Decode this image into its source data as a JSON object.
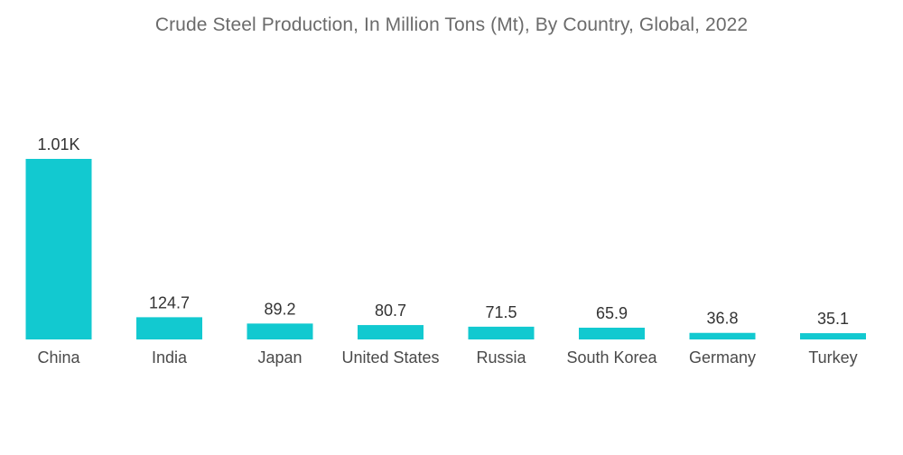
{
  "chart_data": {
    "type": "bar",
    "title": "Crude Steel Production, In Million Tons (Mt), By Country, Global, 2022",
    "categories": [
      "China",
      "India",
      "Japan",
      "United States",
      "Russia",
      "South Korea",
      "Germany",
      "Turkey"
    ],
    "values": [
      1013,
      124.7,
      89.2,
      80.7,
      71.5,
      65.9,
      36.8,
      35.1
    ],
    "value_labels": [
      "1.01K",
      "124.7",
      "89.2",
      "80.7",
      "71.5",
      "65.9",
      "36.8",
      "35.1"
    ],
    "xlabel": "",
    "ylabel": "",
    "ylim": [
      0,
      1013
    ],
    "grid": false,
    "bar_color": "#12c9d0"
  }
}
